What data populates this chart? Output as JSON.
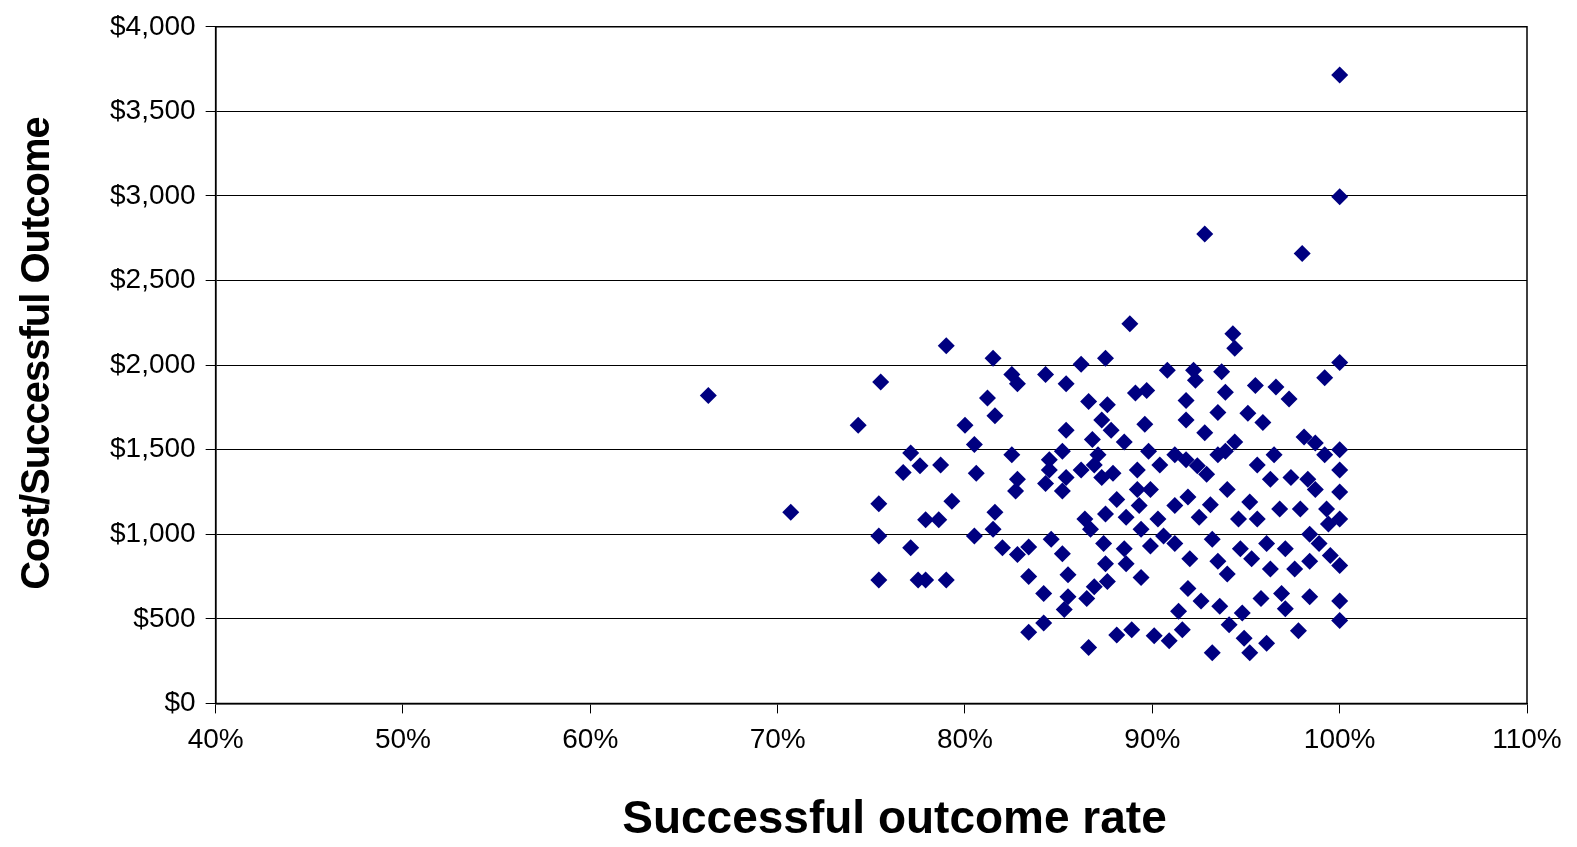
{
  "chart_data": {
    "type": "scatter",
    "xlabel": "Successful outcome rate",
    "ylabel": "Cost/Successful Outcome",
    "xlim": [
      40,
      110
    ],
    "xticks": [
      {
        "value": 40,
        "label": "40%"
      },
      {
        "value": 50,
        "label": "50%"
      },
      {
        "value": 60,
        "label": "60%"
      },
      {
        "value": 70,
        "label": "70%"
      },
      {
        "value": 80,
        "label": "80%"
      },
      {
        "value": 90,
        "label": "90%"
      },
      {
        "value": 100,
        "label": "100%"
      },
      {
        "value": 110,
        "label": "110%"
      }
    ],
    "ylim": [
      0,
      4000
    ],
    "yticks": [
      {
        "value": 0,
        "label": "$0"
      },
      {
        "value": 500,
        "label": "$500"
      },
      {
        "value": 1000,
        "label": "$1,000"
      },
      {
        "value": 1500,
        "label": "$1,500"
      },
      {
        "value": 2000,
        "label": "$2,000"
      },
      {
        "value": 2500,
        "label": "$2,500"
      },
      {
        "value": 3000,
        "label": "$3,000"
      },
      {
        "value": 3500,
        "label": "$3,500"
      },
      {
        "value": 4000,
        "label": "$4,000"
      }
    ],
    "grid": "y",
    "legend": false,
    "marker": "diamond",
    "series": [
      {
        "color": "#000080",
        "x": [
          66.3,
          70.7,
          74.3,
          75.5,
          75.4,
          75.4,
          75.4,
          77.1,
          76.7,
          77.6,
          77.1,
          77.5,
          77.9,
          77.9,
          78.7,
          78.6,
          79.0,
          79.0,
          79.3,
          80.0,
          80.5,
          80.6,
          80.5,
          81.5,
          81.2,
          81.6,
          81.6,
          81.5,
          82.0,
          82.5,
          82.8,
          82.5,
          82.8,
          82.7,
          82.8,
          83.4,
          83.4,
          83.4,
          84.3,
          84.5,
          84.5,
          84.3,
          84.6,
          84.2,
          84.2,
          85.2,
          85.4,
          85.2,
          85.4,
          85.4,
          85.2,
          85.5,
          85.5,
          85.3,
          86.2,
          86.2,
          86.4,
          86.5,
          86.6,
          86.6,
          86.8,
          86.9,
          86.7,
          86.9,
          87.5,
          87.3,
          87.1,
          87.3,
          87.5,
          87.4,
          87.5,
          87.6,
          87.6,
          87.8,
          87.9,
          88.1,
          88.1,
          88.5,
          88.6,
          88.5,
          88.6,
          88.8,
          88.9,
          89.1,
          89.2,
          89.2,
          89.3,
          89.4,
          89.4,
          89.6,
          89.7,
          89.8,
          89.9,
          89.9,
          90.1,
          90.4,
          90.3,
          90.6,
          90.8,
          90.9,
          91.2,
          91.2,
          91.2,
          91.4,
          91.6,
          91.8,
          91.8,
          91.8,
          91.9,
          92.0,
          91.9,
          92.2,
          92.3,
          92.4,
          92.5,
          92.6,
          92.8,
          92.8,
          92.9,
          93.1,
          93.2,
          93.2,
          93.5,
          93.5,
          93.5,
          93.6,
          93.7,
          93.9,
          93.9,
          94.0,
          94.0,
          94.1,
          94.3,
          94.4,
          94.4,
          94.6,
          94.7,
          94.8,
          94.9,
          95.1,
          95.2,
          95.3,
          95.5,
          95.2,
          95.6,
          95.6,
          95.8,
          95.9,
          96.1,
          96.1,
          96.3,
          96.3,
          96.5,
          96.6,
          96.8,
          96.9,
          97.1,
          97.1,
          97.3,
          97.4,
          97.6,
          97.8,
          97.9,
          98.0,
          98.1,
          98.3,
          98.4,
          98.4,
          98.4,
          98.7,
          98.7,
          98.9,
          99.2,
          99.2,
          99.3,
          99.4,
          99.5,
          100,
          100,
          100,
          100,
          100,
          100,
          100,
          100,
          100,
          100
        ],
        "values": [
          1820,
          1130,
          1645,
          1900,
          1180,
          990,
          730,
          1480,
          1365,
          1405,
          920,
          730,
          730,
          1085,
          1410,
          1085,
          730,
          2115,
          1195,
          1645,
          1530,
          1360,
          990,
          2040,
          1805,
          1700,
          1130,
          1030,
          920,
          1945,
          1890,
          1470,
          1325,
          1255,
          880,
          925,
          750,
          420,
          1945,
          1440,
          1380,
          1300,
          970,
          650,
          475,
          1490,
          1335,
          1255,
          1615,
          1890,
          885,
          760,
          630,
          555,
          2005,
          1380,
          1090,
          620,
          1785,
          330,
          1560,
          1410,
          1030,
          690,
          2040,
          1675,
          1470,
          1335,
          1120,
          945,
          825,
          720,
          1765,
          1615,
          1360,
          1205,
          405,
          1545,
          1100,
          915,
          825,
          2245,
          435,
          1835,
          1380,
          1265,
          1170,
          1030,
          745,
          1650,
          1850,
          1490,
          1265,
          930,
          400,
          1410,
          1090,
          990,
          1970,
          370,
          1470,
          1170,
          945,
          545,
          435,
          1790,
          1675,
          1440,
          1220,
          855,
          680,
          1970,
          1910,
          1405,
          1100,
          605,
          2775,
          1600,
          1355,
          1175,
          970,
          300,
          1720,
          1470,
          840,
          575,
          1960,
          1840,
          1490,
          1265,
          765,
          465,
          2185,
          2100,
          1545,
          1090,
          915,
          535,
          385,
          1715,
          1190,
          855,
          1880,
          300,
          1410,
          1090,
          620,
          1660,
          945,
          355,
          1325,
          795,
          1470,
          1870,
          1150,
          650,
          915,
          560,
          1800,
          1335,
          795,
          430,
          1150,
          2660,
          1575,
          1325,
          1000,
          840,
          630,
          1540,
          1265,
          945,
          1925,
          1470,
          1150,
          1060,
          875,
          3715,
          2995,
          2015,
          1500,
          1380,
          1250,
          1090,
          815,
          605,
          490
        ]
      }
    ]
  }
}
